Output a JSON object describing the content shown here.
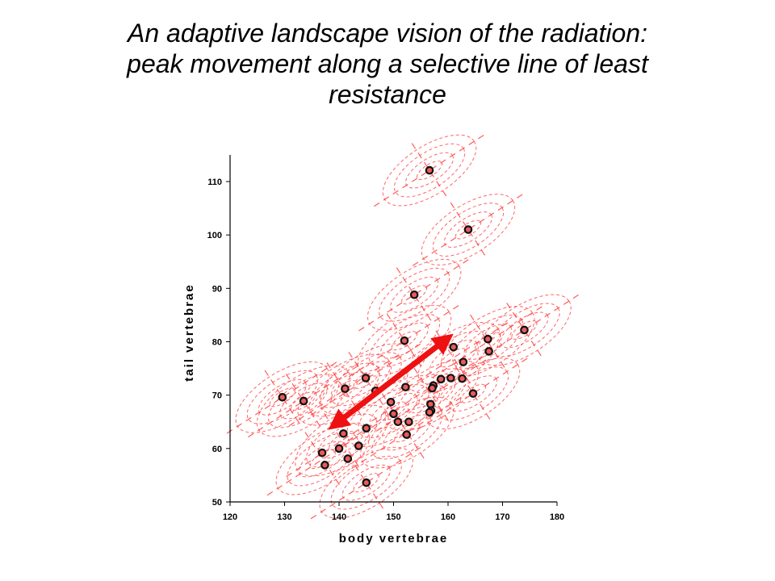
{
  "title_lines": [
    "An adaptive landscape vision of the radiation:",
    "peak movement along a selective line of least",
    "resistance"
  ],
  "colors": {
    "contour": "#ff4a4a",
    "arrow": "#ee1111",
    "point_fill": "#e85a5a",
    "point_outline": "#111111",
    "axis": "#000000"
  },
  "chart_data": {
    "type": "scatter",
    "xlabel": "body vertebrae",
    "ylabel": "tail vertebrae",
    "xlim": [
      120,
      180
    ],
    "ylim": [
      50,
      115
    ],
    "xticks": [
      120,
      130,
      140,
      150,
      160,
      170,
      180
    ],
    "yticks": [
      50,
      60,
      70,
      80,
      90,
      100,
      110
    ],
    "grid": false,
    "points": [
      {
        "x": 156.6,
        "y": 112.1
      },
      {
        "x": 163.7,
        "y": 101.0
      },
      {
        "x": 153.8,
        "y": 88.8
      },
      {
        "x": 174.0,
        "y": 82.2
      },
      {
        "x": 167.3,
        "y": 80.5
      },
      {
        "x": 152.0,
        "y": 80.2
      },
      {
        "x": 161.0,
        "y": 79.0
      },
      {
        "x": 167.5,
        "y": 78.2
      },
      {
        "x": 162.8,
        "y": 76.2
      },
      {
        "x": 160.5,
        "y": 73.2
      },
      {
        "x": 162.6,
        "y": 73.1
      },
      {
        "x": 144.9,
        "y": 73.2
      },
      {
        "x": 158.7,
        "y": 73.0
      },
      {
        "x": 157.3,
        "y": 71.8
      },
      {
        "x": 157.1,
        "y": 71.3
      },
      {
        "x": 152.2,
        "y": 71.5
      },
      {
        "x": 141.1,
        "y": 71.2
      },
      {
        "x": 146.7,
        "y": 70.8
      },
      {
        "x": 164.6,
        "y": 70.3
      },
      {
        "x": 129.6,
        "y": 69.6
      },
      {
        "x": 133.5,
        "y": 68.9
      },
      {
        "x": 149.5,
        "y": 68.7
      },
      {
        "x": 156.8,
        "y": 68.3
      },
      {
        "x": 156.9,
        "y": 67.1
      },
      {
        "x": 156.6,
        "y": 66.8
      },
      {
        "x": 150.0,
        "y": 66.5
      },
      {
        "x": 150.8,
        "y": 65.0
      },
      {
        "x": 152.8,
        "y": 65.0
      },
      {
        "x": 145.0,
        "y": 63.8
      },
      {
        "x": 152.4,
        "y": 62.6
      },
      {
        "x": 140.8,
        "y": 62.8
      },
      {
        "x": 143.6,
        "y": 60.5
      },
      {
        "x": 140.0,
        "y": 60.0
      },
      {
        "x": 136.9,
        "y": 59.2
      },
      {
        "x": 141.6,
        "y": 58.1
      },
      {
        "x": 137.4,
        "y": 56.9
      },
      {
        "x": 145.0,
        "y": 53.6
      }
    ],
    "landscape_peaks": [
      {
        "x": 156.6,
        "y": 112.1
      },
      {
        "x": 163.7,
        "y": 101.0
      },
      {
        "x": 153.8,
        "y": 88.8
      },
      {
        "x": 174.0,
        "y": 82.2
      },
      {
        "x": 167.3,
        "y": 80.0
      },
      {
        "x": 152.0,
        "y": 80.2
      },
      {
        "x": 161.0,
        "y": 77.0
      },
      {
        "x": 145.0,
        "y": 73.0
      },
      {
        "x": 157.0,
        "y": 70.0
      },
      {
        "x": 150.0,
        "y": 67.0
      },
      {
        "x": 129.6,
        "y": 69.6
      },
      {
        "x": 133.5,
        "y": 68.9
      },
      {
        "x": 141.0,
        "y": 71.0
      },
      {
        "x": 164.6,
        "y": 70.3
      },
      {
        "x": 140.5,
        "y": 61.5
      },
      {
        "x": 137.0,
        "y": 58.0
      },
      {
        "x": 145.0,
        "y": 53.6
      },
      {
        "x": 152.5,
        "y": 63.0
      }
    ],
    "arrow": {
      "from": {
        "x": 138.0,
        "y": 63.5
      },
      "to": {
        "x": 161.0,
        "y": 81.5
      },
      "double_headed": true
    }
  }
}
